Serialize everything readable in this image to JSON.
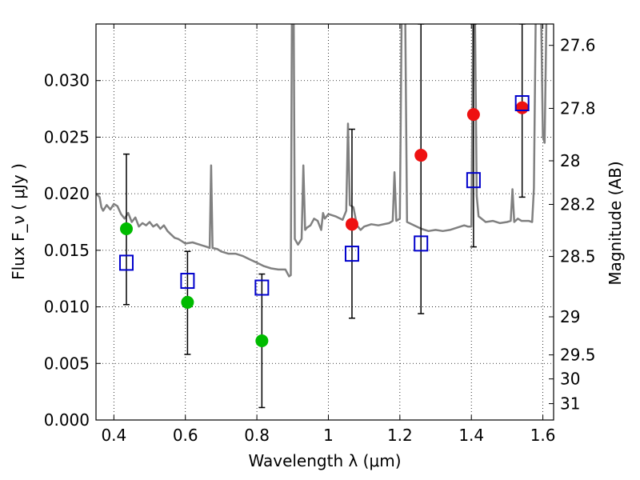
{
  "chart_data": {
    "type": "scatter",
    "xlabel": "Wavelength  λ (μm)",
    "ylabel_left": "Flux  F_ν  ( μJy )",
    "ylabel_right": "Magnitude (AB)",
    "xlim": [
      0.35,
      1.63
    ],
    "ylim": [
      0.0,
      0.035
    ],
    "grid": true,
    "x_ticks": [
      {
        "value": 0.4,
        "label": "0.4"
      },
      {
        "value": 0.6,
        "label": "0.6"
      },
      {
        "value": 0.8,
        "label": "0.8"
      },
      {
        "value": 1.0,
        "label": "1"
      },
      {
        "value": 1.2,
        "label": "1.2"
      },
      {
        "value": 1.4,
        "label": "1.4"
      },
      {
        "value": 1.6,
        "label": "1.6"
      }
    ],
    "y_ticks": [
      {
        "value": 0.0,
        "label": "0.000"
      },
      {
        "value": 0.005,
        "label": "0.005"
      },
      {
        "value": 0.01,
        "label": "0.010"
      },
      {
        "value": 0.015,
        "label": "0.015"
      },
      {
        "value": 0.02,
        "label": "0.020"
      },
      {
        "value": 0.025,
        "label": "0.025"
      },
      {
        "value": 0.03,
        "label": "0.030"
      }
    ],
    "mag_ticks": [
      {
        "value": 27.6,
        "label": "27.6"
      },
      {
        "value": 27.8,
        "label": "27.8"
      },
      {
        "value": 28.0,
        "label": "28"
      },
      {
        "value": 28.2,
        "label": "28.2"
      },
      {
        "value": 28.5,
        "label": "28.5"
      },
      {
        "value": 29.0,
        "label": "29"
      },
      {
        "value": 29.5,
        "label": "29.5"
      },
      {
        "value": 30.0,
        "label": "30"
      },
      {
        "value": 31.0,
        "label": "31"
      }
    ],
    "series": [
      {
        "kind": "circles",
        "color": "#00bb00",
        "points": [
          {
            "x": 0.435,
            "y": 0.0169
          },
          {
            "x": 0.606,
            "y": 0.0104
          },
          {
            "x": 0.814,
            "y": 0.007
          }
        ]
      },
      {
        "kind": "circles",
        "color": "#ee1111",
        "points": [
          {
            "x": 1.066,
            "y": 0.0173
          },
          {
            "x": 1.259,
            "y": 0.0234
          },
          {
            "x": 1.406,
            "y": 0.027
          },
          {
            "x": 1.542,
            "y": 0.0276
          }
        ]
      },
      {
        "kind": "squares",
        "color": "#0000cc",
        "points": [
          {
            "x": 0.435,
            "y": 0.0139
          },
          {
            "x": 0.606,
            "y": 0.0123
          },
          {
            "x": 0.814,
            "y": 0.0117
          },
          {
            "x": 1.066,
            "y": 0.0147
          },
          {
            "x": 1.259,
            "y": 0.0156
          },
          {
            "x": 1.406,
            "y": 0.0212
          },
          {
            "x": 1.542,
            "y": 0.028
          }
        ]
      }
    ],
    "error_bars": [
      {
        "x": 0.435,
        "low": 0.0102,
        "high": 0.0235
      },
      {
        "x": 0.606,
        "low": 0.0058,
        "high": 0.0149
      },
      {
        "x": 0.814,
        "low": 0.0011,
        "high": 0.0129
      },
      {
        "x": 1.066,
        "low": 0.009,
        "high": 0.0257
      },
      {
        "x": 1.259,
        "low": 0.0094,
        "high": 0.035
      },
      {
        "x": 1.406,
        "low": 0.0153,
        "high": 0.035
      },
      {
        "x": 1.542,
        "low": 0.0197,
        "high": 0.035
      }
    ],
    "sed_model": {
      "color": "#808080",
      "points": [
        [
          0.35,
          0.02
        ],
        [
          0.36,
          0.0197
        ],
        [
          0.365,
          0.0188
        ],
        [
          0.37,
          0.0185
        ],
        [
          0.38,
          0.019
        ],
        [
          0.39,
          0.0186
        ],
        [
          0.4,
          0.0191
        ],
        [
          0.41,
          0.0189
        ],
        [
          0.42,
          0.0182
        ],
        [
          0.43,
          0.0178
        ],
        [
          0.44,
          0.0183
        ],
        [
          0.45,
          0.0175
        ],
        [
          0.46,
          0.0179
        ],
        [
          0.47,
          0.0171
        ],
        [
          0.48,
          0.0174
        ],
        [
          0.49,
          0.0172
        ],
        [
          0.5,
          0.0175
        ],
        [
          0.51,
          0.0171
        ],
        [
          0.52,
          0.0173
        ],
        [
          0.53,
          0.0169
        ],
        [
          0.54,
          0.0172
        ],
        [
          0.55,
          0.0167
        ],
        [
          0.56,
          0.0164
        ],
        [
          0.57,
          0.0161
        ],
        [
          0.58,
          0.016
        ],
        [
          0.59,
          0.0158
        ],
        [
          0.6,
          0.0156
        ],
        [
          0.62,
          0.0157
        ],
        [
          0.64,
          0.0155
        ],
        [
          0.66,
          0.0153
        ],
        [
          0.668,
          0.0152
        ],
        [
          0.672,
          0.0225
        ],
        [
          0.676,
          0.0152
        ],
        [
          0.69,
          0.0151
        ],
        [
          0.7,
          0.0149
        ],
        [
          0.72,
          0.0147
        ],
        [
          0.74,
          0.0147
        ],
        [
          0.76,
          0.0145
        ],
        [
          0.78,
          0.0142
        ],
        [
          0.8,
          0.0139
        ],
        [
          0.82,
          0.0136
        ],
        [
          0.84,
          0.0134
        ],
        [
          0.86,
          0.0133
        ],
        [
          0.88,
          0.0133
        ],
        [
          0.89,
          0.0127
        ],
        [
          0.895,
          0.0128
        ],
        [
          0.898,
          0.036
        ],
        [
          0.903,
          0.036
        ],
        [
          0.906,
          0.016
        ],
        [
          0.915,
          0.0155
        ],
        [
          0.925,
          0.016
        ],
        [
          0.93,
          0.0225
        ],
        [
          0.935,
          0.0168
        ],
        [
          0.94,
          0.017
        ],
        [
          0.95,
          0.0172
        ],
        [
          0.96,
          0.0178
        ],
        [
          0.97,
          0.0176
        ],
        [
          0.98,
          0.0168
        ],
        [
          0.985,
          0.0183
        ],
        [
          0.99,
          0.0178
        ],
        [
          1.0,
          0.0182
        ],
        [
          1.02,
          0.018
        ],
        [
          1.04,
          0.0177
        ],
        [
          1.05,
          0.0185
        ],
        [
          1.055,
          0.0262
        ],
        [
          1.06,
          0.019
        ],
        [
          1.07,
          0.0188
        ],
        [
          1.08,
          0.0172
        ],
        [
          1.09,
          0.0168
        ],
        [
          1.1,
          0.0171
        ],
        [
          1.12,
          0.0173
        ],
        [
          1.14,
          0.0172
        ],
        [
          1.17,
          0.0174
        ],
        [
          1.18,
          0.0176
        ],
        [
          1.185,
          0.0219
        ],
        [
          1.19,
          0.0176
        ],
        [
          1.2,
          0.0178
        ],
        [
          1.205,
          0.036
        ],
        [
          1.215,
          0.036
        ],
        [
          1.22,
          0.0175
        ],
        [
          1.24,
          0.0172
        ],
        [
          1.26,
          0.0169
        ],
        [
          1.28,
          0.0167
        ],
        [
          1.3,
          0.0168
        ],
        [
          1.32,
          0.0167
        ],
        [
          1.34,
          0.0168
        ],
        [
          1.36,
          0.017
        ],
        [
          1.38,
          0.0172
        ],
        [
          1.39,
          0.0171
        ],
        [
          1.4,
          0.0171
        ],
        [
          1.405,
          0.036
        ],
        [
          1.41,
          0.036
        ],
        [
          1.415,
          0.0198
        ],
        [
          1.42,
          0.018
        ],
        [
          1.44,
          0.0175
        ],
        [
          1.46,
          0.0176
        ],
        [
          1.48,
          0.0174
        ],
        [
          1.5,
          0.0175
        ],
        [
          1.51,
          0.0176
        ],
        [
          1.515,
          0.0204
        ],
        [
          1.52,
          0.0175
        ],
        [
          1.53,
          0.0178
        ],
        [
          1.54,
          0.0176
        ],
        [
          1.56,
          0.0176
        ],
        [
          1.57,
          0.0175
        ],
        [
          1.575,
          0.0205
        ],
        [
          1.58,
          0.036
        ],
        [
          1.595,
          0.036
        ],
        [
          1.6,
          0.025
        ],
        [
          1.605,
          0.0245
        ],
        [
          1.61,
          0.036
        ],
        [
          1.63,
          0.036
        ]
      ]
    }
  }
}
